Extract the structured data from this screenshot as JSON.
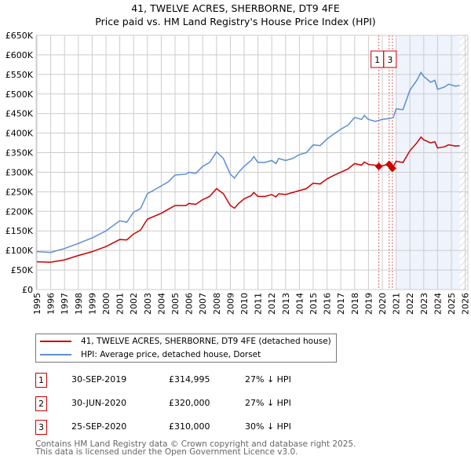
{
  "chart_data": {
    "type": "line",
    "title": "41, TWELVE ACRES, SHERBORNE, DT9 4FE",
    "subtitle": "Price paid vs. HM Land Registry's House Price Index (HPI)",
    "xlim": [
      1995,
      2026
    ],
    "ylim": [
      0,
      650000
    ],
    "x_ticks": [
      "1995",
      "1996",
      "1997",
      "1998",
      "1999",
      "2000",
      "2001",
      "2002",
      "2003",
      "2004",
      "2005",
      "2006",
      "2007",
      "2008",
      "2009",
      "2010",
      "2011",
      "2012",
      "2013",
      "2014",
      "2015",
      "2016",
      "2017",
      "2018",
      "2019",
      "2020",
      "2021",
      "2022",
      "2023",
      "2024",
      "2025",
      "2026"
    ],
    "y_ticks": [
      "£0",
      "£50K",
      "£100K",
      "£150K",
      "£200K",
      "£250K",
      "£300K",
      "£350K",
      "£400K",
      "£450K",
      "£500K",
      "£550K",
      "£600K",
      "£650K"
    ],
    "grid": true,
    "highlight_range": [
      2021.0,
      2025.6
    ],
    "future_hatch_from": 2025.6,
    "series": [
      {
        "name": "41, TWELVE ACRES, SHERBORNE, DT9 4FE (detached house)",
        "color": "#cc0000",
        "points": [
          [
            1995,
            71
          ],
          [
            1996,
            70
          ],
          [
            1997,
            76
          ],
          [
            1998,
            87
          ],
          [
            1999,
            97
          ],
          [
            2000,
            110
          ],
          [
            2001,
            128
          ],
          [
            2001.5,
            127
          ],
          [
            2002,
            142
          ],
          [
            2002.5,
            152
          ],
          [
            2003,
            180
          ],
          [
            2004,
            195
          ],
          [
            2004.5,
            205
          ],
          [
            2005,
            215
          ],
          [
            2005.8,
            215
          ],
          [
            2006,
            220
          ],
          [
            2006.5,
            218
          ],
          [
            2007,
            230
          ],
          [
            2007.5,
            238
          ],
          [
            2008,
            258
          ],
          [
            2008.5,
            245
          ],
          [
            2009,
            215
          ],
          [
            2009.3,
            208
          ],
          [
            2009.6,
            220
          ],
          [
            2010,
            232
          ],
          [
            2010.5,
            240
          ],
          [
            2010.7,
            248
          ],
          [
            2011,
            238
          ],
          [
            2011.5,
            238
          ],
          [
            2012,
            243
          ],
          [
            2012.3,
            237
          ],
          [
            2012.5,
            245
          ],
          [
            2013,
            243
          ],
          [
            2013.5,
            248
          ],
          [
            2014,
            253
          ],
          [
            2014.5,
            258
          ],
          [
            2015,
            272
          ],
          [
            2015.5,
            270
          ],
          [
            2016,
            283
          ],
          [
            2016.5,
            292
          ],
          [
            2017,
            300
          ],
          [
            2017.5,
            308
          ],
          [
            2018,
            322
          ],
          [
            2018.5,
            318
          ],
          [
            2018.7,
            326
          ],
          [
            2019,
            320
          ],
          [
            2019.5,
            318
          ],
          [
            2019.75,
            315
          ],
          [
            2020.5,
            320
          ],
          [
            2020.73,
            310
          ],
          [
            2021,
            328
          ],
          [
            2021.5,
            325
          ],
          [
            2022,
            355
          ],
          [
            2022.5,
            375
          ],
          [
            2022.8,
            390
          ],
          [
            2023,
            383
          ],
          [
            2023.5,
            375
          ],
          [
            2023.8,
            378
          ],
          [
            2024,
            362
          ],
          [
            2024.5,
            365
          ],
          [
            2024.8,
            370
          ],
          [
            2025.3,
            367
          ],
          [
            2025.6,
            368
          ]
        ]
      },
      {
        "name": "HPI: Average price, detached house, Dorset",
        "color": "#5b8fd4",
        "points": [
          [
            1995,
            97
          ],
          [
            1996,
            95
          ],
          [
            1997,
            105
          ],
          [
            1998,
            118
          ],
          [
            1999,
            132
          ],
          [
            2000,
            150
          ],
          [
            2001,
            176
          ],
          [
            2001.5,
            172
          ],
          [
            2002,
            198
          ],
          [
            2002.5,
            207
          ],
          [
            2003,
            245
          ],
          [
            2004,
            265
          ],
          [
            2004.5,
            275
          ],
          [
            2005,
            293
          ],
          [
            2005.8,
            295
          ],
          [
            2006,
            300
          ],
          [
            2006.5,
            297
          ],
          [
            2007,
            315
          ],
          [
            2007.5,
            325
          ],
          [
            2008,
            352
          ],
          [
            2008.5,
            335
          ],
          [
            2009,
            295
          ],
          [
            2009.3,
            285
          ],
          [
            2009.6,
            300
          ],
          [
            2010,
            315
          ],
          [
            2010.5,
            330
          ],
          [
            2010.7,
            340
          ],
          [
            2011,
            325
          ],
          [
            2011.5,
            325
          ],
          [
            2012,
            330
          ],
          [
            2012.3,
            322
          ],
          [
            2012.5,
            335
          ],
          [
            2013,
            330
          ],
          [
            2013.5,
            335
          ],
          [
            2014,
            345
          ],
          [
            2014.5,
            350
          ],
          [
            2015,
            370
          ],
          [
            2015.5,
            368
          ],
          [
            2016,
            385
          ],
          [
            2016.5,
            398
          ],
          [
            2017,
            410
          ],
          [
            2017.5,
            420
          ],
          [
            2018,
            440
          ],
          [
            2018.5,
            435
          ],
          [
            2018.7,
            445
          ],
          [
            2019,
            435
          ],
          [
            2019.5,
            430
          ],
          [
            2020,
            435
          ],
          [
            2020.5,
            437
          ],
          [
            2020.8,
            440
          ],
          [
            2021,
            462
          ],
          [
            2021.5,
            460
          ],
          [
            2022,
            510
          ],
          [
            2022.5,
            535
          ],
          [
            2022.8,
            555
          ],
          [
            2023,
            545
          ],
          [
            2023.5,
            530
          ],
          [
            2023.8,
            535
          ],
          [
            2024,
            512
          ],
          [
            2024.5,
            518
          ],
          [
            2024.8,
            525
          ],
          [
            2025.3,
            520
          ],
          [
            2025.6,
            522
          ]
        ]
      }
    ],
    "sales": [
      {
        "label": "1",
        "x": 2019.75,
        "value": 314995,
        "date": "30-SEP-2019",
        "price": "£314,995",
        "hpi": "27% ↓ HPI"
      },
      {
        "label": "2",
        "x": 2020.5,
        "value": 320000,
        "date": "30-JUN-2020",
        "price": "£320,000",
        "hpi": "27% ↓ HPI"
      },
      {
        "label": "3",
        "x": 2020.73,
        "value": 310000,
        "date": "25-SEP-2020",
        "price": "£310,000",
        "hpi": "30% ↓ HPI"
      }
    ]
  },
  "footer": [
    "Contains HM Land Registry data © Crown copyright and database right 2025.",
    "This data is licensed under the Open Government Licence v3.0."
  ]
}
